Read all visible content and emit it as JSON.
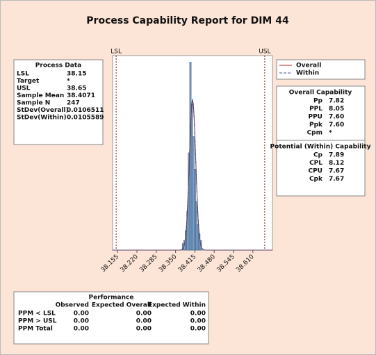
{
  "chart_data": {
    "type": "histogram",
    "title": "Process Capability Report for DIM 44",
    "bins": [
      38.3725,
      38.3775,
      38.3825,
      38.3875,
      38.3925,
      38.3975,
      38.4025,
      38.4075,
      38.4125,
      38.4175,
      38.4225,
      38.4275,
      38.4325,
      38.4375
    ],
    "counts": [
      2,
      3,
      6,
      12,
      30,
      58,
      45,
      35,
      25,
      15,
      8,
      5,
      3
    ],
    "color": "#7da1c4",
    "xlim": [
      38.138,
      38.676
    ],
    "ylim": [
      0,
      60
    ],
    "xticks": [
      38.155,
      {
        "value": 38.22,
        "label": "38.220"
      },
      38.285,
      {
        "value": 38.35,
        "label": "38.350"
      },
      38.415,
      {
        "value": 38.48,
        "label": "38.480"
      },
      38.545,
      {
        "value": 38.61,
        "label": "38.610"
      }
    ],
    "spec_lines": [
      {
        "label": "LSL",
        "value": 38.15,
        "color": "#8b1a1a"
      },
      {
        "label": "USL",
        "value": 38.65,
        "color": "#8b1a1a"
      }
    ],
    "curves": [
      {
        "name": "Overall",
        "color": "#a52a2a",
        "dashed": false,
        "mean": 38.4071,
        "sd": 0.0106511
      },
      {
        "name": "Within",
        "color": "#3a4f8a",
        "dashed": true,
        "mean": 38.4071,
        "sd": 0.0105589
      }
    ]
  },
  "process_data": {
    "title": "Process Data",
    "rows": [
      [
        "LSL",
        "38.15"
      ],
      [
        "Target",
        "*"
      ],
      [
        "USL",
        "38.65"
      ],
      [
        "Sample Mean",
        "38.4071"
      ],
      [
        "Sample N",
        "247"
      ],
      [
        "StDev(Overall)",
        "0.0106511"
      ],
      [
        "StDev(Within)",
        "0.0105589"
      ]
    ]
  },
  "overall_capability": {
    "title": "Overall Capability",
    "rows": [
      [
        "Pp",
        "7.82"
      ],
      [
        "PPL",
        "8.05"
      ],
      [
        "PPU",
        "7.60"
      ],
      [
        "Ppk",
        "7.60"
      ],
      [
        "Cpm",
        "*"
      ]
    ]
  },
  "potential_capability": {
    "title": "Potential (Within) Capability",
    "rows": [
      [
        "Cp",
        "7.89"
      ],
      [
        "CPL",
        "8.12"
      ],
      [
        "CPU",
        "7.67"
      ],
      [
        "Cpk",
        "7.67"
      ]
    ]
  },
  "performance": {
    "title": "Performance",
    "columns": [
      "Observed",
      "Expected Overall",
      "Expected Within"
    ],
    "rows": [
      [
        "PPM < LSL",
        "0.00",
        "0.00",
        "0.00"
      ],
      [
        "PPM > USL",
        "0.00",
        "0.00",
        "0.00"
      ],
      [
        "PPM Total",
        "0.00",
        "0.00",
        "0.00"
      ]
    ]
  }
}
